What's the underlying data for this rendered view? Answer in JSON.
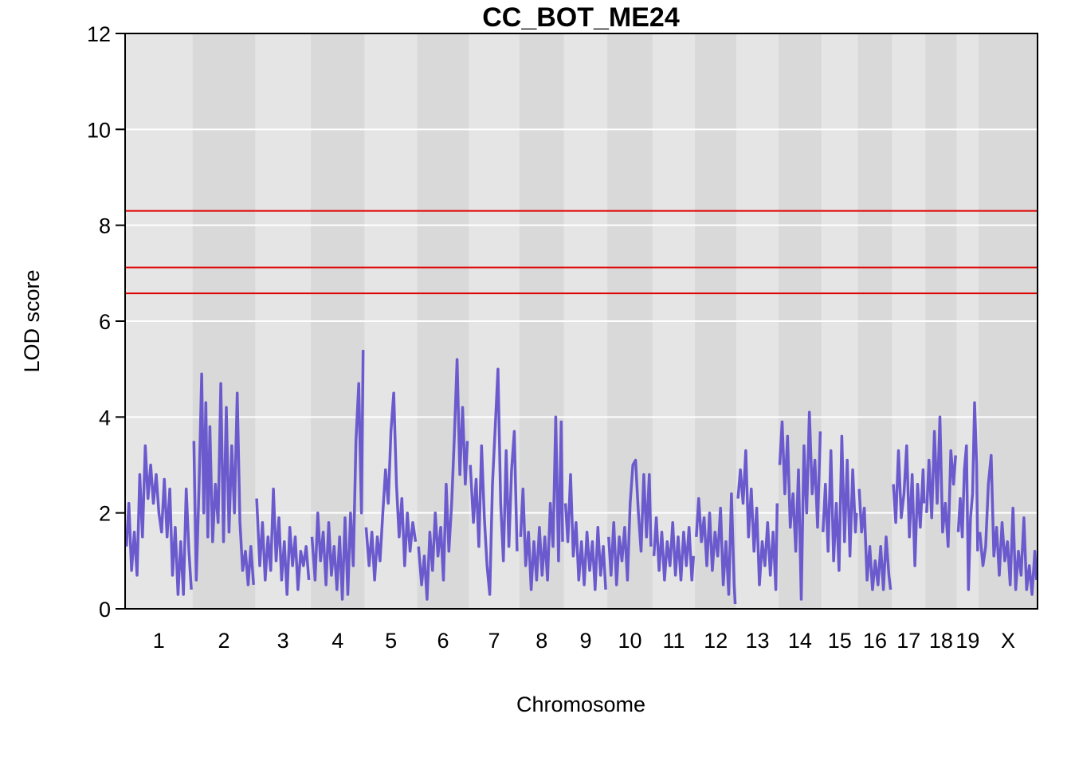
{
  "chart_data": {
    "type": "line",
    "title": "CC_BOT_ME24",
    "xlabel": "Chromosome",
    "ylabel": "LOD score",
    "ylim": [
      0,
      12
    ],
    "yticks": [
      0,
      2,
      4,
      6,
      8,
      10,
      12
    ],
    "grid": true,
    "line_color": "#6a5acd",
    "threshold_color": "#e00000",
    "thresholds": [
      8.3,
      7.12,
      6.58
    ],
    "chromosomes": [
      {
        "label": "1",
        "length": 195.5
      },
      {
        "label": "2",
        "length": 182.1
      },
      {
        "label": "3",
        "length": 160.0
      },
      {
        "label": "4",
        "length": 156.5
      },
      {
        "label": "5",
        "length": 151.8
      },
      {
        "label": "6",
        "length": 149.7
      },
      {
        "label": "7",
        "length": 145.4
      },
      {
        "label": "8",
        "length": 129.4
      },
      {
        "label": "9",
        "length": 124.6
      },
      {
        "label": "10",
        "length": 130.7
      },
      {
        "label": "11",
        "length": 122.1
      },
      {
        "label": "12",
        "length": 120.1
      },
      {
        "label": "13",
        "length": 120.4
      },
      {
        "label": "14",
        "length": 124.9
      },
      {
        "label": "15",
        "length": 104.0
      },
      {
        "label": "16",
        "length": 98.2
      },
      {
        "label": "17",
        "length": 95.3
      },
      {
        "label": "18",
        "length": 90.7
      },
      {
        "label": "19",
        "length": 61.4
      },
      {
        "label": "X",
        "length": 171.0
      }
    ],
    "series": [
      {
        "chr": "1",
        "pos": [
          3,
          10,
          18,
          26,
          34,
          42,
          50,
          58,
          66,
          74,
          82,
          90,
          98,
          106,
          114,
          122,
          130,
          138,
          146,
          154,
          162,
          170,
          178,
          186,
          193
        ],
        "lod": [
          1.3,
          2.2,
          0.8,
          1.6,
          0.7,
          2.8,
          1.5,
          3.4,
          2.3,
          3.0,
          2.2,
          2.8,
          2.0,
          1.6,
          2.7,
          1.5,
          2.5,
          0.7,
          1.7,
          0.3,
          1.4,
          0.3,
          2.5,
          1.2,
          0.4
        ]
      },
      {
        "chr": "2",
        "pos": [
          3,
          10,
          18,
          26,
          32,
          38,
          44,
          50,
          58,
          66,
          74,
          82,
          90,
          98,
          106,
          114,
          122,
          130,
          138,
          146,
          154,
          162,
          170,
          178
        ],
        "lod": [
          3.5,
          0.6,
          2.5,
          4.9,
          2.0,
          4.3,
          1.5,
          3.8,
          1.4,
          2.6,
          1.8,
          4.7,
          1.4,
          4.2,
          1.6,
          3.4,
          2.0,
          4.5,
          1.8,
          0.8,
          1.2,
          0.5,
          1.3,
          0.5
        ]
      },
      {
        "chr": "3",
        "pos": [
          3,
          12,
          20,
          28,
          36,
          44,
          52,
          60,
          68,
          76,
          84,
          92,
          100,
          108,
          116,
          124,
          132,
          140,
          148,
          156
        ],
        "lod": [
          2.3,
          0.9,
          1.8,
          0.6,
          1.5,
          0.8,
          2.5,
          1.0,
          1.9,
          0.6,
          1.4,
          0.3,
          1.7,
          0.9,
          1.5,
          0.4,
          1.2,
          0.9,
          1.3,
          0.6
        ]
      },
      {
        "chr": "4",
        "pos": [
          3,
          12,
          20,
          28,
          36,
          44,
          52,
          60,
          68,
          76,
          84,
          92,
          100,
          108,
          116,
          124,
          132,
          140,
          148,
          153
        ],
        "lod": [
          1.5,
          0.6,
          2.0,
          1.0,
          1.6,
          0.5,
          1.8,
          0.7,
          1.3,
          0.4,
          1.5,
          0.2,
          1.9,
          0.3,
          2.0,
          0.9,
          3.5,
          4.7,
          2.0,
          5.4
        ]
      },
      {
        "chr": "5",
        "pos": [
          3,
          12,
          20,
          28,
          36,
          44,
          52,
          60,
          68,
          76,
          84,
          92,
          100,
          108,
          116,
          124,
          132,
          140,
          148
        ],
        "lod": [
          1.7,
          0.9,
          1.6,
          0.6,
          1.5,
          1.0,
          2.0,
          2.9,
          2.2,
          3.7,
          4.5,
          2.6,
          1.5,
          2.3,
          0.9,
          2.0,
          1.2,
          1.8,
          1.4
        ]
      },
      {
        "chr": "6",
        "pos": [
          3,
          12,
          20,
          28,
          36,
          44,
          52,
          60,
          68,
          76,
          84,
          92,
          100,
          108,
          116,
          124,
          132,
          140,
          146
        ],
        "lod": [
          1.3,
          0.5,
          1.1,
          0.2,
          1.6,
          0.8,
          2.0,
          1.1,
          1.7,
          0.6,
          2.6,
          1.2,
          2.2,
          3.6,
          5.2,
          2.8,
          4.2,
          2.6,
          3.5
        ]
      },
      {
        "chr": "7",
        "pos": [
          3,
          12,
          20,
          28,
          36,
          44,
          52,
          60,
          68,
          76,
          84,
          92,
          100,
          108,
          116,
          124,
          132,
          140
        ],
        "lod": [
          3.0,
          1.8,
          2.7,
          1.3,
          3.4,
          1.9,
          0.9,
          0.3,
          2.6,
          3.8,
          5.0,
          2.2,
          1.0,
          3.3,
          1.3,
          2.9,
          3.7,
          1.2
        ]
      },
      {
        "chr": "8",
        "pos": [
          3,
          10,
          18,
          26,
          34,
          42,
          50,
          58,
          66,
          74,
          82,
          90,
          98,
          106,
          114,
          122,
          126
        ],
        "lod": [
          1.5,
          2.5,
          0.9,
          1.6,
          0.4,
          1.4,
          0.6,
          1.7,
          0.7,
          1.5,
          0.6,
          2.2,
          1.3,
          4.0,
          1.0,
          3.9,
          1.4
        ]
      },
      {
        "chr": "9",
        "pos": [
          3,
          10,
          18,
          26,
          34,
          42,
          50,
          58,
          66,
          74,
          82,
          90,
          98,
          106,
          114,
          121
        ],
        "lod": [
          2.2,
          1.4,
          2.8,
          1.1,
          1.8,
          0.6,
          1.4,
          0.5,
          1.6,
          0.8,
          1.4,
          0.4,
          1.7,
          0.7,
          1.3,
          0.4
        ]
      },
      {
        "chr": "10",
        "pos": [
          3,
          10,
          18,
          26,
          34,
          42,
          50,
          58,
          66,
          74,
          82,
          90,
          98,
          106,
          114,
          122,
          127
        ],
        "lod": [
          1.5,
          0.7,
          1.8,
          0.5,
          1.5,
          1.0,
          1.7,
          0.6,
          2.2,
          3.0,
          3.1,
          2.0,
          1.2,
          2.8,
          1.5,
          2.8,
          1.3
        ]
      },
      {
        "chr": "11",
        "pos": [
          3,
          10,
          18,
          26,
          34,
          42,
          50,
          58,
          66,
          74,
          82,
          90,
          98,
          106,
          114,
          119
        ],
        "lod": [
          1.1,
          1.9,
          0.8,
          1.6,
          0.6,
          1.4,
          0.9,
          1.8,
          0.7,
          1.5,
          0.6,
          1.6,
          0.9,
          1.7,
          0.6,
          1.1
        ]
      },
      {
        "chr": "12",
        "pos": [
          3,
          10,
          18,
          26,
          34,
          42,
          50,
          58,
          66,
          74,
          82,
          90,
          98,
          106,
          114,
          117
        ],
        "lod": [
          1.5,
          2.3,
          1.4,
          1.9,
          0.9,
          2.0,
          0.8,
          1.6,
          1.1,
          2.1,
          0.5,
          1.4,
          0.3,
          2.4,
          0.5,
          0.1
        ]
      },
      {
        "chr": "13",
        "pos": [
          3,
          10,
          18,
          26,
          34,
          42,
          50,
          58,
          66,
          74,
          82,
          90,
          98,
          106,
          114,
          118
        ],
        "lod": [
          2.3,
          2.9,
          2.2,
          3.3,
          1.5,
          2.5,
          1.2,
          2.1,
          0.5,
          1.4,
          0.9,
          1.8,
          0.7,
          1.6,
          0.4,
          2.2
        ]
      },
      {
        "chr": "14",
        "pos": [
          3,
          10,
          18,
          26,
          34,
          42,
          50,
          58,
          66,
          74,
          82,
          90,
          98,
          106,
          114,
          122
        ],
        "lod": [
          3.0,
          3.9,
          2.4,
          3.6,
          1.7,
          2.4,
          1.2,
          2.9,
          0.2,
          3.4,
          2.0,
          4.1,
          2.4,
          3.1,
          1.7,
          3.7
        ]
      },
      {
        "chr": "15",
        "pos": [
          3,
          10,
          18,
          26,
          34,
          42,
          50,
          58,
          66,
          74,
          82,
          90,
          98,
          101
        ],
        "lod": [
          1.6,
          2.6,
          1.2,
          3.3,
          1.0,
          2.2,
          0.8,
          3.6,
          1.4,
          3.1,
          1.1,
          2.9,
          1.6,
          2.0
        ]
      },
      {
        "chr": "16",
        "pos": [
          3,
          10,
          18,
          26,
          34,
          42,
          50,
          58,
          66,
          74,
          82,
          90,
          95
        ],
        "lod": [
          2.5,
          1.6,
          2.1,
          0.6,
          1.3,
          0.4,
          1.0,
          0.5,
          1.3,
          0.4,
          1.5,
          0.7,
          0.4
        ]
      },
      {
        "chr": "17",
        "pos": [
          3,
          10,
          18,
          26,
          34,
          42,
          50,
          58,
          66,
          74,
          82,
          90,
          93
        ],
        "lod": [
          2.6,
          1.8,
          3.3,
          1.9,
          2.4,
          3.4,
          1.5,
          2.8,
          0.9,
          2.6,
          1.7,
          2.9,
          2.2
        ]
      },
      {
        "chr": "18",
        "pos": [
          3,
          10,
          18,
          26,
          34,
          42,
          50,
          58,
          66,
          74,
          82,
          88
        ],
        "lod": [
          2.0,
          3.1,
          1.9,
          3.7,
          2.2,
          4.0,
          1.6,
          2.2,
          1.3,
          3.3,
          2.6,
          3.2
        ]
      },
      {
        "chr": "19",
        "pos": [
          3,
          9,
          15,
          21,
          27,
          33,
          39,
          45,
          51,
          57,
          60
        ],
        "lod": [
          1.6,
          2.3,
          1.5,
          2.9,
          3.4,
          0.4,
          1.9,
          2.4,
          4.3,
          3.0,
          1.2
        ]
      },
      {
        "chr": "X",
        "pos": [
          3,
          12,
          20,
          28,
          36,
          44,
          52,
          60,
          68,
          76,
          84,
          92,
          100,
          108,
          116,
          124,
          132,
          140,
          148,
          156,
          164,
          169
        ],
        "lod": [
          1.6,
          0.9,
          1.3,
          2.6,
          3.2,
          1.1,
          1.7,
          0.7,
          1.8,
          1.0,
          1.4,
          0.5,
          2.1,
          0.4,
          1.2,
          0.7,
          1.9,
          0.4,
          0.9,
          0.3,
          1.2,
          0.6
        ]
      }
    ]
  }
}
